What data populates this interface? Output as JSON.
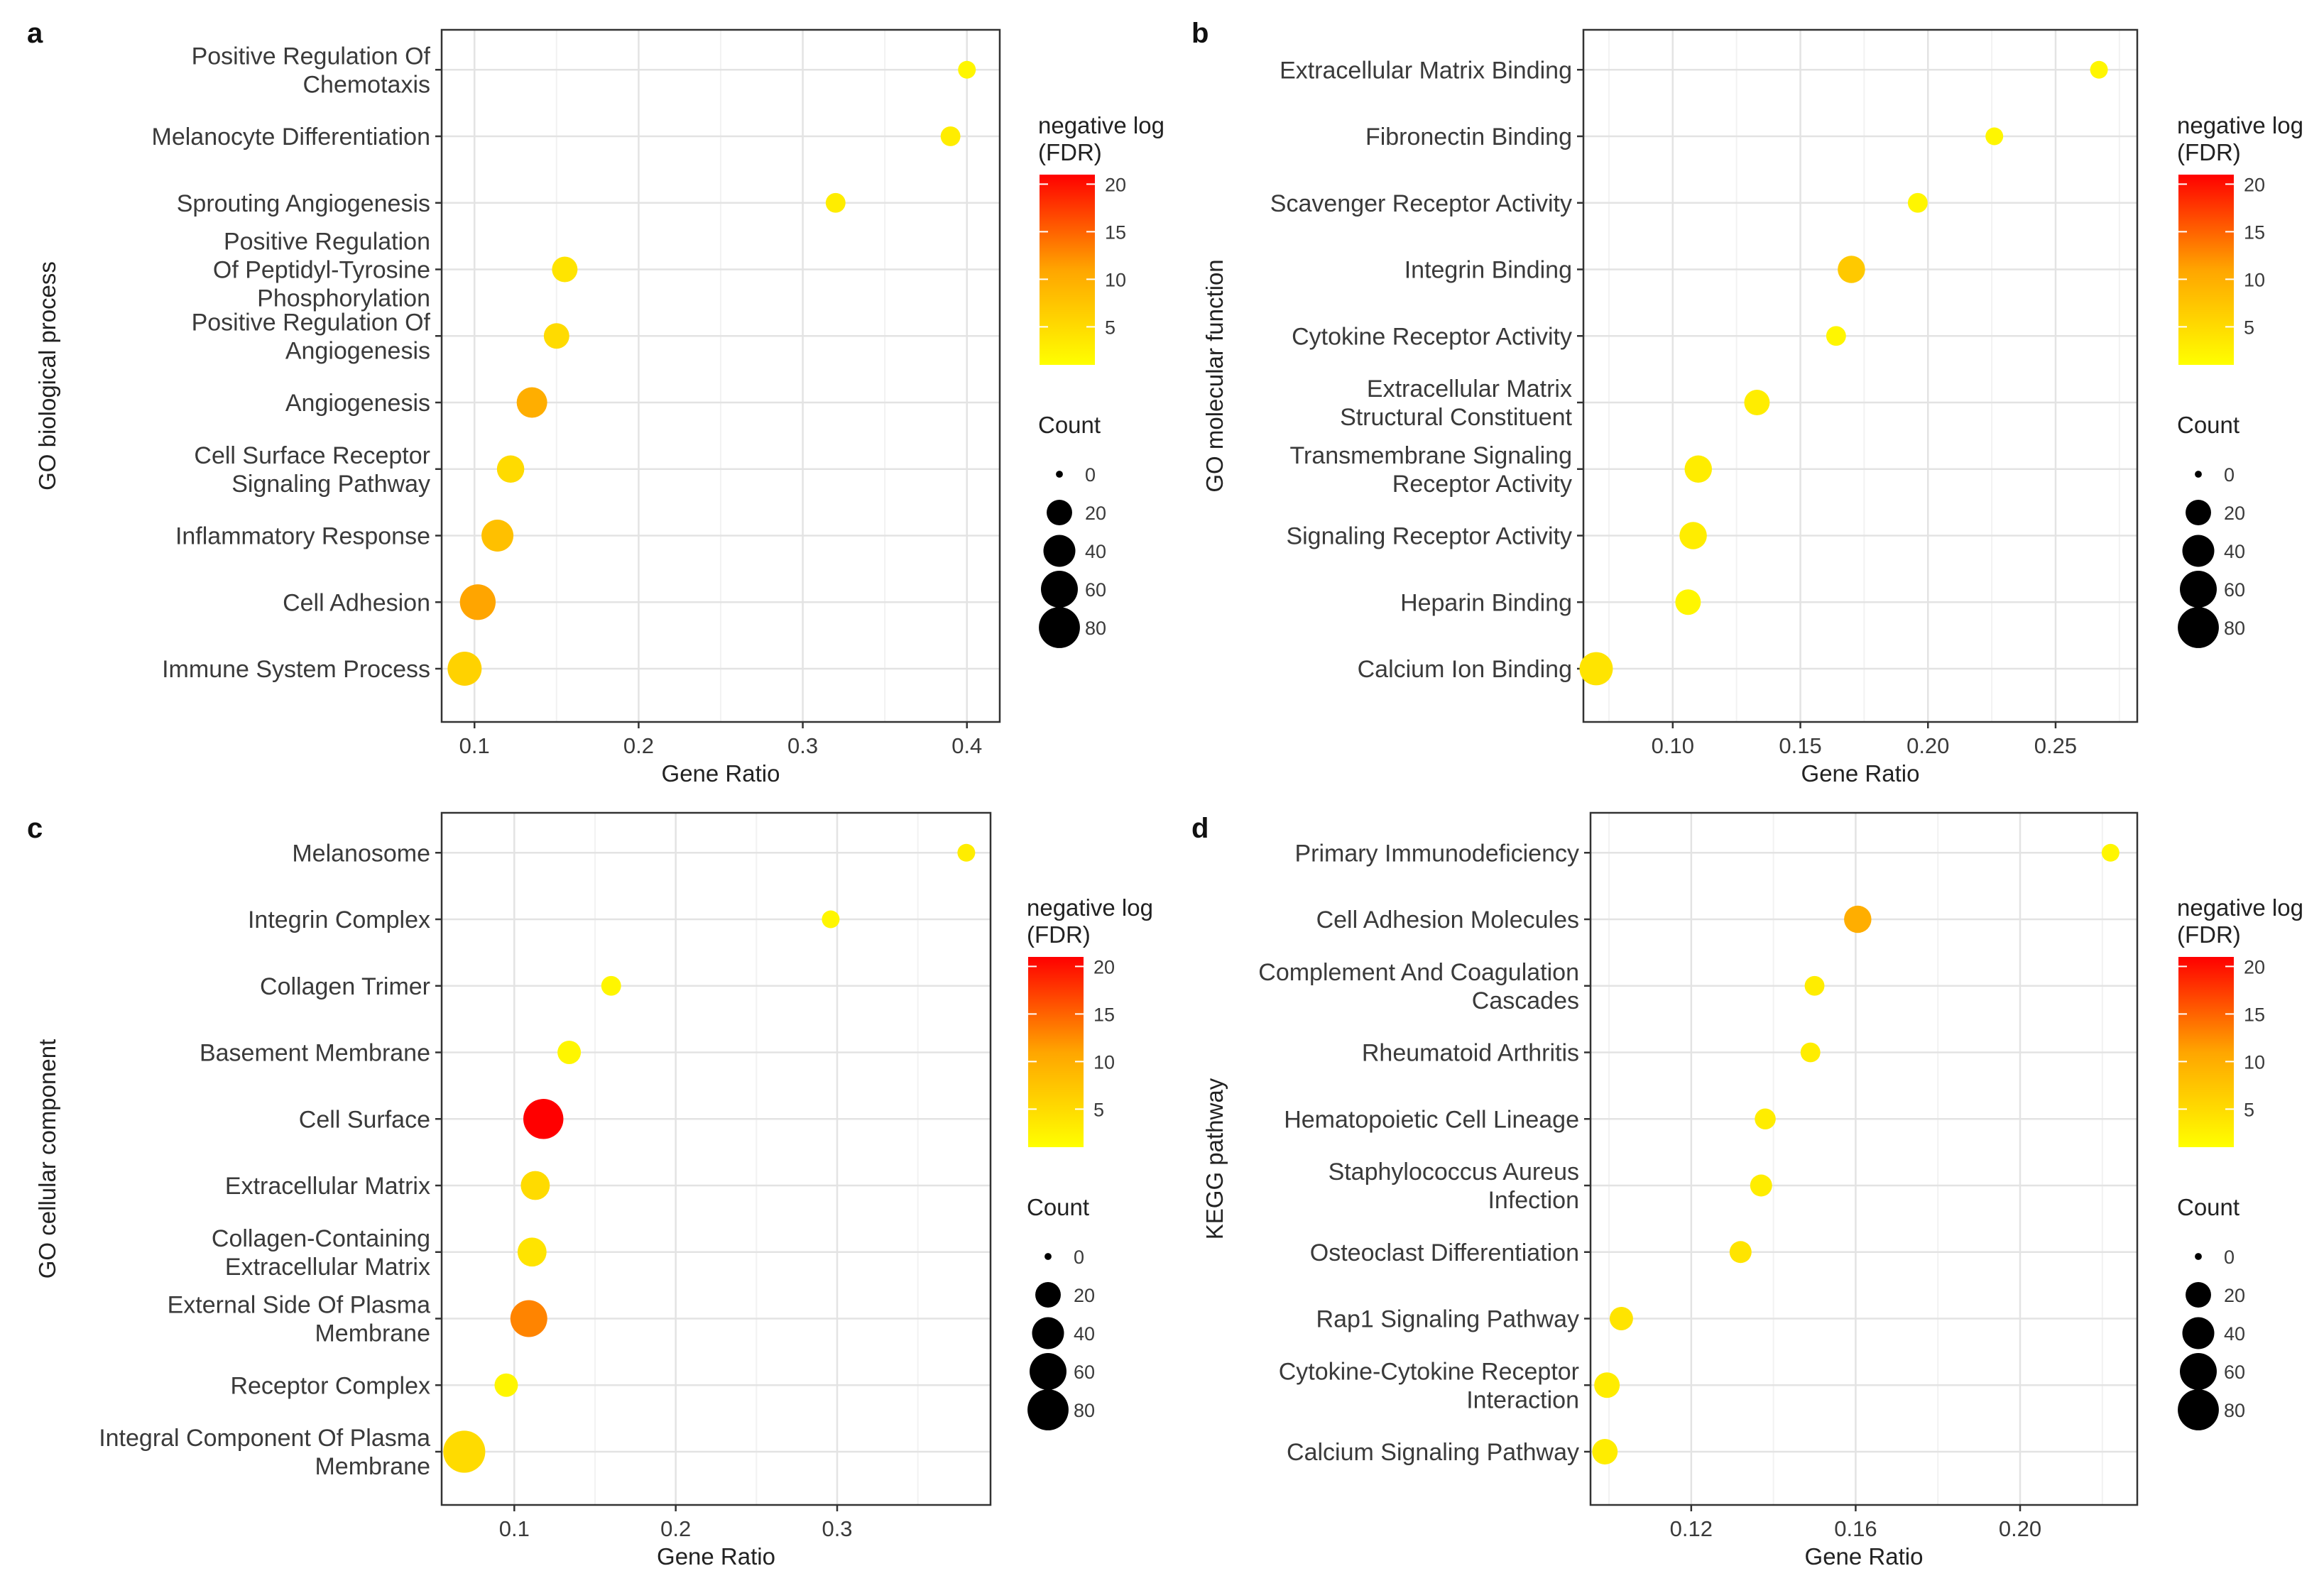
{
  "figure": {
    "legend_titles": {
      "color": [
        "negative log",
        "(FDR)"
      ],
      "size": "Count"
    }
  },
  "chart_data": [
    {
      "type": "scatter",
      "panel_label": "a",
      "ylabel": "GO biological process",
      "xlabel": "Gene Ratio",
      "xlim": [
        0.08,
        0.42
      ],
      "xticks": [
        0.1,
        0.2,
        0.3,
        0.4
      ],
      "xtick_labels": [
        "0.1",
        "0.2",
        "0.3",
        "0.4"
      ],
      "categories": [
        [
          "Positive Regulation Of",
          "Chemotaxis"
        ],
        [
          "Melanocyte Differentiation"
        ],
        [
          "Sprouting Angiogenesis"
        ],
        [
          "Positive Regulation",
          "Of Peptidyl-Tyrosine",
          "Phosphorylation"
        ],
        [
          "Positive Regulation Of",
          "Angiogenesis"
        ],
        [
          "Angiogenesis"
        ],
        [
          "Cell Surface Receptor",
          "Signaling Pathway"
        ],
        [
          "Inflammatory Response"
        ],
        [
          "Cell Adhesion"
        ],
        [
          "Immune System Process"
        ]
      ],
      "gene_ratio": [
        0.4,
        0.39,
        0.32,
        0.155,
        0.15,
        0.135,
        0.122,
        0.114,
        0.102,
        0.094
      ],
      "count": [
        5,
        8,
        8,
        20,
        20,
        35,
        25,
        40,
        55,
        48
      ],
      "neg_log_fdr": [
        2,
        3,
        3,
        4,
        5,
        10,
        5,
        8,
        11,
        6
      ],
      "color_legend": {
        "ticks": [
          5,
          10,
          15,
          20
        ],
        "min": 1,
        "max": 21
      },
      "size_legend": [
        0,
        20,
        40,
        60,
        80
      ]
    },
    {
      "type": "scatter",
      "panel_label": "b",
      "ylabel": "GO molecular function",
      "xlabel": "Gene Ratio",
      "xlim": [
        0.065,
        0.282
      ],
      "xticks": [
        0.1,
        0.15,
        0.2,
        0.25
      ],
      "xtick_labels": [
        "0.10",
        "0.15",
        "0.20",
        "0.25"
      ],
      "categories": [
        [
          "Extracellular Matrix Binding"
        ],
        [
          "Fibronectin Binding"
        ],
        [
          "Scavenger Receptor Activity"
        ],
        [
          "Integrin Binding"
        ],
        [
          "Cytokine Receptor Activity"
        ],
        [
          "Extracellular Matrix",
          "Structural Constituent"
        ],
        [
          "Transmembrane Signaling",
          "Receptor Activity"
        ],
        [
          "Signaling Receptor Activity"
        ],
        [
          "Heparin Binding"
        ],
        [
          "Calcium Ion Binding"
        ]
      ],
      "gene_ratio": [
        0.267,
        0.226,
        0.196,
        0.17,
        0.164,
        0.133,
        0.11,
        0.108,
        0.106,
        0.07
      ],
      "count": [
        5,
        5,
        8,
        25,
        8,
        20,
        25,
        25,
        20,
        45
      ],
      "neg_log_fdr": [
        2,
        2,
        2,
        7,
        2,
        3,
        3,
        3,
        2,
        4
      ],
      "color_legend": {
        "ticks": [
          5,
          10,
          15,
          20
        ],
        "min": 1,
        "max": 21
      },
      "size_legend": [
        0,
        20,
        40,
        60,
        80
      ]
    },
    {
      "type": "scatter",
      "panel_label": "c",
      "ylabel": "GO cellular component",
      "xlabel": "Gene Ratio",
      "xlim": [
        0.055,
        0.395
      ],
      "xticks": [
        0.1,
        0.2,
        0.3
      ],
      "xtick_labels": [
        "0.1",
        "0.2",
        "0.3"
      ],
      "categories": [
        [
          "Melanosome"
        ],
        [
          "Integrin Complex"
        ],
        [
          "Collagen Trimer"
        ],
        [
          "Basement Membrane"
        ],
        [
          "Cell Surface"
        ],
        [
          "Extracellular Matrix"
        ],
        [
          "Collagen-Containing",
          "Extracellular Matrix"
        ],
        [
          "External Side Of Plasma",
          "Membrane"
        ],
        [
          "Receptor Complex"
        ],
        [
          "Integral Component Of Plasma",
          "Membrane"
        ]
      ],
      "gene_ratio": [
        0.38,
        0.296,
        0.16,
        0.134,
        0.118,
        0.113,
        0.111,
        0.109,
        0.095,
        0.069
      ],
      "count": [
        5,
        5,
        8,
        15,
        75,
        30,
        30,
        60,
        15,
        85
      ],
      "neg_log_fdr": [
        3,
        2,
        2,
        2,
        21,
        5,
        4,
        13,
        2,
        5
      ],
      "color_legend": {
        "ticks": [
          5,
          10,
          15,
          20
        ],
        "min": 1,
        "max": 21
      },
      "size_legend": [
        0,
        20,
        40,
        60,
        80
      ]
    },
    {
      "type": "scatter",
      "panel_label": "d",
      "ylabel": "KEGG pathway",
      "xlabel": "Gene Ratio",
      "xlim": [
        0.0955,
        0.2285
      ],
      "xticks": [
        0.12,
        0.16,
        0.2
      ],
      "xtick_labels": [
        "0.12",
        "0.16",
        "0.20"
      ],
      "categories": [
        [
          "Primary Immunodeficiency"
        ],
        [
          "Cell Adhesion Molecules"
        ],
        [
          "Complement And Coagulation",
          "Cascades"
        ],
        [
          "Rheumatoid Arthritis"
        ],
        [
          "Hematopoietic Cell Lineage"
        ],
        [
          "Staphylococcus Aureus",
          "Infection"
        ],
        [
          "Osteoclast Differentiation"
        ],
        [
          "Rap1 Signaling Pathway"
        ],
        [
          "Cytokine-Cytokine Receptor",
          "Interaction"
        ],
        [
          "Calcium Signaling Pathway"
        ]
      ],
      "gene_ratio": [
        0.222,
        0.1605,
        0.15,
        0.149,
        0.138,
        0.137,
        0.132,
        0.103,
        0.0995,
        0.099
      ],
      "count": [
        5,
        25,
        8,
        8,
        10,
        12,
        12,
        15,
        20,
        20
      ],
      "neg_log_fdr": [
        2,
        10,
        3,
        3,
        3,
        3,
        4,
        4,
        3,
        3
      ],
      "color_legend": {
        "ticks": [
          5,
          10,
          15,
          20
        ],
        "min": 1,
        "max": 21
      },
      "size_legend": [
        0,
        20,
        40,
        60,
        80
      ]
    }
  ]
}
